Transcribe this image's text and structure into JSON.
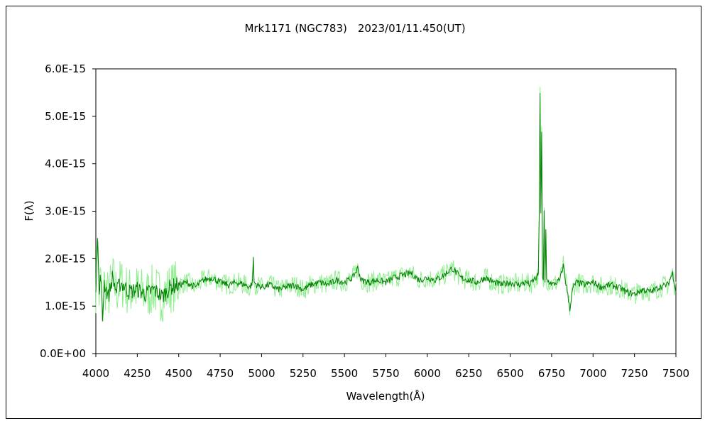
{
  "chart_data": {
    "type": "line",
    "title": "Mrk1171 (NGC783)　2023/01/11.450(UT)",
    "xlabel": "Wavelength(Å)",
    "ylabel": "F(λ)",
    "xlim": [
      4000,
      7500
    ],
    "ylim": [
      0,
      6e-15
    ],
    "x_ticks": [
      "4000",
      "4250",
      "4500",
      "4750",
      "5000",
      "5250",
      "5500",
      "5750",
      "6000",
      "6250",
      "6500",
      "6750",
      "7000",
      "7250",
      "7500"
    ],
    "y_ticks": [
      "0.0E+00",
      "1.0E-15",
      "2.0E-15",
      "3.0E-15",
      "4.0E-15",
      "5.0E-15",
      "6.0E-15"
    ],
    "grid": false,
    "legend": "none",
    "colors": {
      "smoothed": "#008000",
      "raw": "#90EE90",
      "axes": "#000000"
    },
    "series": [
      {
        "role": "smoothed",
        "x": [
          4000,
          4010,
          4020,
          4030,
          4040,
          4050,
          4075,
          4100,
          4125,
          4150,
          4200,
          4250,
          4300,
          4350,
          4400,
          4450,
          4500,
          4550,
          4600,
          4650,
          4700,
          4750,
          4800,
          4850,
          4900,
          4930,
          4945,
          4950,
          4955,
          4970,
          5000,
          5050,
          5100,
          5150,
          5200,
          5250,
          5300,
          5350,
          5400,
          5450,
          5500,
          5550,
          5580,
          5600,
          5650,
          5700,
          5750,
          5800,
          5850,
          5900,
          5950,
          6000,
          6050,
          6100,
          6150,
          6200,
          6250,
          6300,
          6350,
          6400,
          6450,
          6500,
          6550,
          6600,
          6620,
          6640,
          6660,
          6670,
          6675,
          6680,
          6685,
          6690,
          6695,
          6700,
          6705,
          6710,
          6715,
          6720,
          6740,
          6760,
          6780,
          6800,
          6820,
          6840,
          6860,
          6880,
          6900,
          6950,
          7000,
          7050,
          7100,
          7150,
          7200,
          7250,
          7300,
          7350,
          7400,
          7450,
          7480,
          7490,
          7500
        ],
        "y": [
          1.4e-15,
          2.6e-15,
          1.2e-15,
          1.7e-15,
          7e-16,
          1.5e-15,
          1.2e-15,
          1.6e-15,
          1.3e-15,
          1.5e-15,
          1.3e-15,
          1.35e-15,
          1.25e-15,
          1.35e-15,
          1.2e-15,
          1.4e-15,
          1.45e-15,
          1.5e-15,
          1.4e-15,
          1.55e-15,
          1.6e-15,
          1.5e-15,
          1.45e-15,
          1.5e-15,
          1.45e-15,
          1.4e-15,
          1.5e-15,
          2.05e-15,
          1.5e-15,
          1.45e-15,
          1.4e-15,
          1.45e-15,
          1.35e-15,
          1.4e-15,
          1.45e-15,
          1.35e-15,
          1.45e-15,
          1.5e-15,
          1.45e-15,
          1.55e-15,
          1.5e-15,
          1.6e-15,
          1.8e-15,
          1.55e-15,
          1.5e-15,
          1.55e-15,
          1.5e-15,
          1.6e-15,
          1.65e-15,
          1.7e-15,
          1.55e-15,
          1.6e-15,
          1.55e-15,
          1.65e-15,
          1.8e-15,
          1.6e-15,
          1.55e-15,
          1.5e-15,
          1.6e-15,
          1.5e-15,
          1.45e-15,
          1.5e-15,
          1.45e-15,
          1.5e-15,
          1.45e-15,
          1.55e-15,
          1.6e-15,
          1.7e-15,
          2.8e-15,
          5.45e-15,
          3e-15,
          4.7e-15,
          1.6e-15,
          1.5e-15,
          3e-15,
          1.45e-15,
          2.6e-15,
          1.55e-15,
          1.5e-15,
          1.45e-15,
          1.5e-15,
          1.55e-15,
          1.85e-15,
          1.4e-15,
          9.5e-16,
          1.4e-15,
          1.5e-15,
          1.45e-15,
          1.5e-15,
          1.4e-15,
          1.45e-15,
          1.4e-15,
          1.3e-15,
          1.25e-15,
          1.35e-15,
          1.3e-15,
          1.4e-15,
          1.45e-15,
          1.7e-15,
          1.5e-15,
          1.3e-15
        ]
      }
    ]
  }
}
